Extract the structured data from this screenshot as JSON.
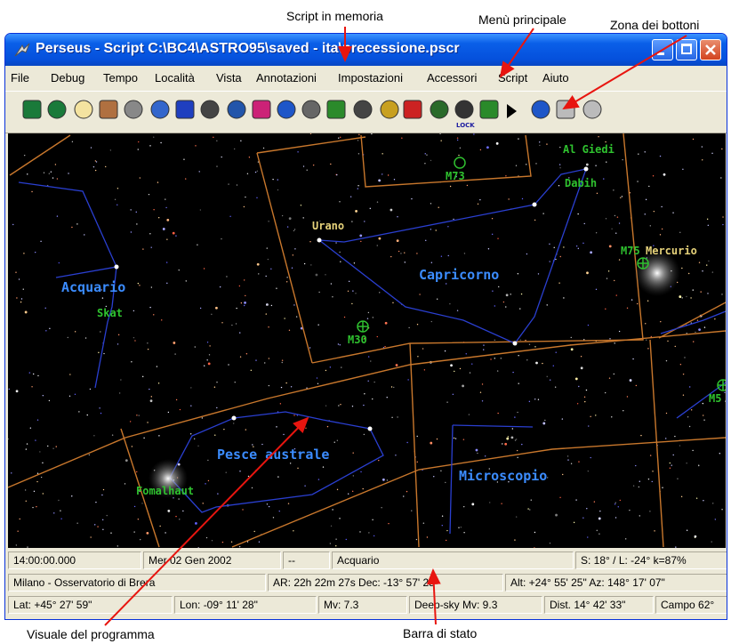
{
  "annotations": [
    "Script in memoria",
    "Menù principale",
    "Zona dei bottoni",
    "Visuale del programma",
    "Barra di stato"
  ],
  "window": {
    "title": "Perseus - Script C:\\BC4\\ASTRO95\\saved - ita\\precessione.pscr",
    "menu": [
      "File",
      "Debug",
      "Tempo",
      "Località",
      "Vista",
      "Annotazioni",
      "Impostazioni",
      "Accessori",
      "Script",
      "Aiuto"
    ],
    "toolbar_lock": "LOCK",
    "sky_labels": [
      {
        "text": "Acquario",
        "kind": "constellation"
      },
      {
        "text": "Skat",
        "kind": "star"
      },
      {
        "text": "Urano",
        "kind": "planet"
      },
      {
        "text": "Capricorno",
        "kind": "constellation"
      },
      {
        "text": "M73",
        "kind": "object"
      },
      {
        "text": "Al Giedi",
        "kind": "star"
      },
      {
        "text": "Dabih",
        "kind": "star"
      },
      {
        "text": "M75",
        "kind": "object"
      },
      {
        "text": "Mercurio",
        "kind": "planet"
      },
      {
        "text": "M30",
        "kind": "object"
      },
      {
        "text": "Pesce australe",
        "kind": "constellation"
      },
      {
        "text": "Fomalhaut",
        "kind": "star"
      },
      {
        "text": "Microscopio",
        "kind": "constellation"
      },
      {
        "text": "M5",
        "kind": "object"
      }
    ],
    "status_bar": [
      [
        "14:00:00.000",
        "Mer 02 Gen 2002",
        "--",
        "Acquario",
        "S: 18° / L: -24° k=87%"
      ],
      [
        "Milano - Osservatorio di Brera",
        "AR: 22h 22m 27s  Dec: -13° 57' 25\"",
        "Alt: +24° 55' 25\"  Az: 148° 17' 07\""
      ],
      [
        "Lat: +45° 27' 59\"",
        "Lon: -09° 11' 28\"",
        "Mv: 7.3",
        "Deep-sky Mv: 9.3",
        "Dist. 14° 42' 33\"",
        "Campo 62°"
      ]
    ]
  }
}
